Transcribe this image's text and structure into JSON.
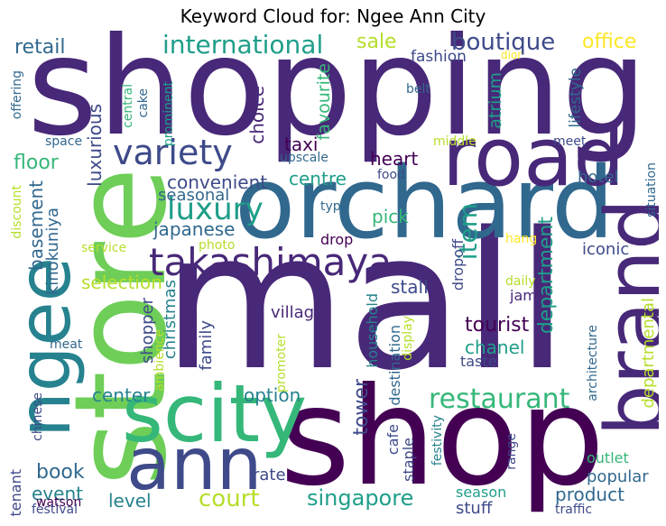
{
  "title": "Keyword Cloud for: Ngee Ann City",
  "palette": {
    "dark_purple": "#440154",
    "purple": "#482878",
    "indigo": "#3e4a89",
    "blue": "#31688e",
    "teal": "#26828e",
    "green_teal": "#1f9e89",
    "green": "#35b779",
    "light_green": "#6ece58",
    "yellow_green": "#b5de2b",
    "yellow": "#fde725"
  },
  "words": [
    {
      "text": "shopping",
      "color": "#482878"
    },
    {
      "text": "mall",
      "color": "#482878"
    },
    {
      "text": "orchard",
      "color": "#31688e"
    },
    {
      "text": "store",
      "color": "#6ece58"
    },
    {
      "text": "shop",
      "color": "#440154"
    },
    {
      "text": "scity",
      "color": "#35b779"
    },
    {
      "text": "ngee",
      "color": "#26828e"
    },
    {
      "text": "ann",
      "color": "#3e4a89"
    },
    {
      "text": "road",
      "color": "#482878"
    },
    {
      "text": "brand",
      "color": "#482878"
    },
    {
      "text": "takashimaya",
      "color": "#482878"
    },
    {
      "text": "restaurant",
      "color": "#35b779"
    },
    {
      "text": "luxury",
      "color": "#1f9e89"
    },
    {
      "text": "variety",
      "color": "#3e4a89"
    },
    {
      "text": "international",
      "color": "#1f9e89"
    },
    {
      "text": "boutique",
      "color": "#3e4a89"
    },
    {
      "text": "retail",
      "color": "#31688e"
    },
    {
      "text": "sale",
      "color": "#b5de2b"
    },
    {
      "text": "office",
      "color": "#fde725"
    },
    {
      "text": "fashion",
      "color": "#3e4a89"
    },
    {
      "text": "dior",
      "color": "#fde725"
    },
    {
      "text": "favourite",
      "color": "#35b779"
    },
    {
      "text": "atrium",
      "color": "#1f9e89"
    },
    {
      "text": "lifestyle",
      "color": "#31688e"
    },
    {
      "text": "belt",
      "color": "#31688e"
    },
    {
      "text": "offering",
      "color": "#31688e"
    },
    {
      "text": "central",
      "color": "#35b779"
    },
    {
      "text": "cake",
      "color": "#31688e"
    },
    {
      "text": "prominent",
      "color": "#1f9e89"
    },
    {
      "text": "luxurious",
      "color": "#3e4a89"
    },
    {
      "text": "choice",
      "color": "#482878"
    },
    {
      "text": "space",
      "color": "#31688e"
    },
    {
      "text": "middle",
      "color": "#b5de2b"
    },
    {
      "text": "meet",
      "color": "#3e4a89"
    },
    {
      "text": "taxi",
      "color": "#440154"
    },
    {
      "text": "heart",
      "color": "#440154"
    },
    {
      "text": "upscale",
      "color": "#31688e"
    },
    {
      "text": "floor",
      "color": "#35b779"
    },
    {
      "text": "convenient",
      "color": "#3e4a89"
    },
    {
      "text": "centre",
      "color": "#1f9e89"
    },
    {
      "text": "food",
      "color": "#3e4a89"
    },
    {
      "text": "hotel",
      "color": "#31688e"
    },
    {
      "text": "situation",
      "color": "#31688e"
    },
    {
      "text": "discount",
      "color": "#b5de2b"
    },
    {
      "text": "basement",
      "color": "#31688e"
    },
    {
      "text": "seasonal",
      "color": "#31688e"
    },
    {
      "text": "type",
      "color": "#31688e"
    },
    {
      "text": "kinokuniya",
      "color": "#31688e"
    },
    {
      "text": "japanese",
      "color": "#31688e"
    },
    {
      "text": "pick",
      "color": "#35b779"
    },
    {
      "text": "item",
      "color": "#1f9e89"
    },
    {
      "text": "drop",
      "color": "#440154"
    },
    {
      "text": "service",
      "color": "#b5de2b"
    },
    {
      "text": "photo",
      "color": "#b5de2b"
    },
    {
      "text": "iconic",
      "color": "#3e4a89"
    },
    {
      "text": "hang",
      "color": "#fde725"
    },
    {
      "text": "daily",
      "color": "#b5de2b"
    },
    {
      "text": "department",
      "color": "#1f9e89"
    },
    {
      "text": "dropoff",
      "color": "#3e4a89"
    },
    {
      "text": "selection",
      "color": "#b5de2b"
    },
    {
      "text": "stall",
      "color": "#3e4a89"
    },
    {
      "text": "jam",
      "color": "#482878"
    },
    {
      "text": "christmas",
      "color": "#26828e"
    },
    {
      "text": "shopper",
      "color": "#3e4a89"
    },
    {
      "text": "village",
      "color": "#482878"
    },
    {
      "text": "tourist",
      "color": "#440154"
    },
    {
      "text": "family",
      "color": "#3e4a89"
    },
    {
      "text": "ambience",
      "color": "#b5de2b"
    },
    {
      "text": "promoter",
      "color": "#b5de2b"
    },
    {
      "text": "household",
      "color": "#26828e"
    },
    {
      "text": "display",
      "color": "#b5de2b"
    },
    {
      "text": "destination",
      "color": "#31688e"
    },
    {
      "text": "chanel",
      "color": "#1f9e89"
    },
    {
      "text": "departmental",
      "color": "#b5de2b"
    },
    {
      "text": "architecture",
      "color": "#31688e"
    },
    {
      "text": "taste",
      "color": "#3e4a89"
    },
    {
      "text": "meat",
      "color": "#31688e"
    },
    {
      "text": "center",
      "color": "#26828e"
    },
    {
      "text": "option",
      "color": "#26828e"
    },
    {
      "text": "tower",
      "color": "#3e4a89"
    },
    {
      "text": "chinese",
      "color": "#3e4a89"
    },
    {
      "text": "book",
      "color": "#31688e"
    },
    {
      "text": "event",
      "color": "#26828e"
    },
    {
      "text": "cafe",
      "color": "#3e4a89"
    },
    {
      "text": "staple",
      "color": "#3e4a89"
    },
    {
      "text": "festivity",
      "color": "#26828e"
    },
    {
      "text": "range",
      "color": "#3e4a89"
    },
    {
      "text": "outlet",
      "color": "#35b779"
    },
    {
      "text": "popular",
      "color": "#31688e"
    },
    {
      "text": "tenant",
      "color": "#3e4a89"
    },
    {
      "text": "watson",
      "color": "#440154"
    },
    {
      "text": "rate",
      "color": "#3e4a89"
    },
    {
      "text": "level",
      "color": "#26828e"
    },
    {
      "text": "court",
      "color": "#b5de2b"
    },
    {
      "text": "singapore",
      "color": "#1f9e89"
    },
    {
      "text": "season",
      "color": "#1f9e89"
    },
    {
      "text": "product",
      "color": "#31688e"
    },
    {
      "text": "stuff",
      "color": "#3e4a89"
    },
    {
      "text": "festival",
      "color": "#3e4a89"
    },
    {
      "text": "traffic",
      "color": "#3e4a89"
    }
  ]
}
